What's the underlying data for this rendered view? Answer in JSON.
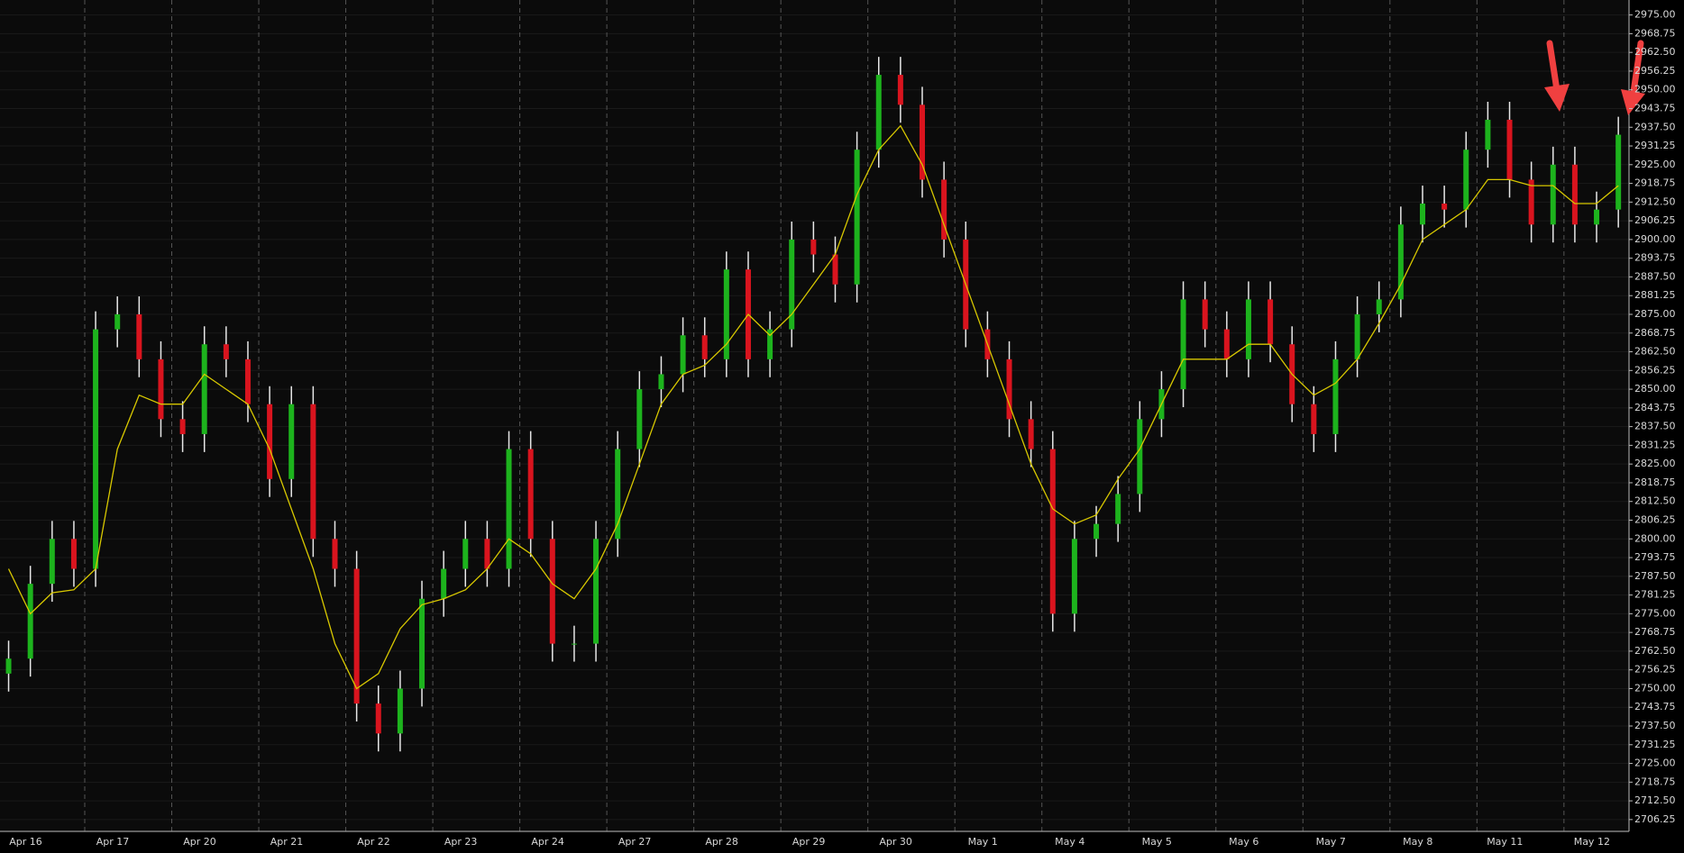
{
  "chart_data": {
    "type": "candlestick",
    "categories": [
      "Apr 16",
      null,
      null,
      null,
      "Apr 17",
      null,
      null,
      null,
      "Apr 20",
      null,
      null,
      null,
      "Apr 21",
      null,
      null,
      null,
      "Apr 22",
      null,
      null,
      null,
      "Apr 23",
      null,
      null,
      null,
      "Apr 24",
      null,
      null,
      null,
      "Apr 27",
      null,
      null,
      null,
      "Apr 28",
      null,
      null,
      null,
      "Apr 29",
      null,
      null,
      null,
      "Apr 30",
      null,
      null,
      null,
      "May 1",
      null,
      null,
      null,
      "May 4",
      null,
      null,
      null,
      "May 5",
      null,
      null,
      null,
      "May 6",
      null,
      null,
      null,
      "May 7",
      null,
      null,
      null,
      "May 8",
      null,
      null,
      null,
      "May 11",
      null,
      null,
      null,
      "May 12",
      null,
      null
    ],
    "open": [
      2755,
      2760,
      2785,
      2800,
      2790,
      2870,
      2875,
      2860,
      2840,
      2835,
      2865,
      2860,
      2845,
      2820,
      2845,
      2800,
      2790,
      2745,
      2735,
      2750,
      2780,
      2790,
      2800,
      2790,
      2830,
      2800,
      2765,
      2765,
      2800,
      2830,
      2850,
      2855,
      2868,
      2860,
      2890,
      2860,
      2870,
      2900,
      2895,
      2885,
      2930,
      2955,
      2945,
      2920,
      2900,
      2870,
      2860,
      2840,
      2830,
      2775,
      2800,
      2805,
      2815,
      2840,
      2850,
      2880,
      2870,
      2860,
      2880,
      2865,
      2845,
      2835,
      2860,
      2875,
      2880,
      2905,
      2912,
      2910,
      2930,
      2940,
      2920,
      2905,
      2925,
      2905,
      2910
    ],
    "high": [
      2766,
      2791,
      2806,
      2806,
      2876,
      2881,
      2881,
      2866,
      2846,
      2871,
      2871,
      2866,
      2851,
      2851,
      2851,
      2806,
      2796,
      2751,
      2756,
      2786,
      2796,
      2806,
      2806,
      2836,
      2836,
      2806,
      2771,
      2806,
      2836,
      2856,
      2861,
      2874,
      2874,
      2896,
      2896,
      2876,
      2906,
      2906,
      2901,
      2936,
      2961,
      2961,
      2951,
      2926,
      2906,
      2876,
      2866,
      2846,
      2836,
      2806,
      2811,
      2821,
      2846,
      2856,
      2886,
      2886,
      2876,
      2886,
      2886,
      2871,
      2851,
      2866,
      2881,
      2886,
      2911,
      2918,
      2918,
      2936,
      2946,
      2946,
      2926,
      2931,
      2931,
      2916,
      2941
    ],
    "low": [
      2749,
      2754,
      2779,
      2784,
      2784,
      2864,
      2854,
      2834,
      2829,
      2829,
      2854,
      2839,
      2814,
      2814,
      2794,
      2784,
      2739,
      2729,
      2729,
      2744,
      2774,
      2784,
      2784,
      2784,
      2794,
      2759,
      2759,
      2759,
      2794,
      2824,
      2844,
      2849,
      2854,
      2854,
      2854,
      2854,
      2864,
      2889,
      2879,
      2879,
      2924,
      2939,
      2914,
      2894,
      2864,
      2854,
      2834,
      2824,
      2769,
      2769,
      2794,
      2799,
      2809,
      2834,
      2844,
      2864,
      2854,
      2854,
      2859,
      2839,
      2829,
      2829,
      2854,
      2869,
      2874,
      2899,
      2904,
      2904,
      2924,
      2914,
      2899,
      2899,
      2899,
      2899,
      2904
    ],
    "close": [
      2760,
      2785,
      2800,
      2790,
      2870,
      2875,
      2860,
      2840,
      2835,
      2865,
      2860,
      2845,
      2820,
      2845,
      2800,
      2790,
      2745,
      2735,
      2750,
      2780,
      2790,
      2800,
      2790,
      2830,
      2800,
      2765,
      2765,
      2800,
      2830,
      2850,
      2855,
      2868,
      2860,
      2890,
      2860,
      2870,
      2900,
      2895,
      2885,
      2930,
      2955,
      2945,
      2920,
      2900,
      2870,
      2860,
      2840,
      2830,
      2775,
      2800,
      2805,
      2815,
      2840,
      2850,
      2880,
      2870,
      2860,
      2880,
      2865,
      2845,
      2835,
      2860,
      2875,
      2880,
      2905,
      2912,
      2910,
      2930,
      2940,
      2920,
      2905,
      2925,
      2905,
      2910,
      2935
    ],
    "up_color": "#1db31d",
    "down_color": "#d9141e",
    "wick_color": "#e8e8e8",
    "overlay_line": {
      "color": "#d8c800",
      "values": [
        2790,
        2775,
        2782,
        2783,
        2790,
        2830,
        2848,
        2845,
        2845,
        2855,
        2850,
        2845,
        2830,
        2810,
        2790,
        2765,
        2750,
        2755,
        2770,
        2778,
        2780,
        2783,
        2790,
        2800,
        2795,
        2785,
        2780,
        2790,
        2805,
        2825,
        2845,
        2855,
        2858,
        2865,
        2875,
        2868,
        2875,
        2885,
        2895,
        2915,
        2930,
        2938,
        2925,
        2905,
        2885,
        2865,
        2845,
        2825,
        2810,
        2805,
        2808,
        2820,
        2830,
        2845,
        2860,
        2860,
        2860,
        2865,
        2865,
        2855,
        2848,
        2852,
        2860,
        2872,
        2885,
        2900,
        2905,
        2910,
        2920,
        2920,
        2918,
        2918,
        2912,
        2912,
        2918
      ]
    },
    "ylim": [
      2702.3,
      2980.0
    ],
    "yticks": [
      2706.25,
      {
        "value": 2712.5,
        "label": "2712.50"
      },
      2718.75,
      {
        "value": 2725,
        "label": "2725.00"
      },
      2731.25,
      {
        "value": 2737.5,
        "label": "2737.50"
      },
      2743.75,
      {
        "value": 2750,
        "label": "2750.00"
      },
      2756.25,
      {
        "value": 2762.5,
        "label": "2762.50"
      },
      2768.75,
      {
        "value": 2775,
        "label": "2775.00"
      },
      2781.25,
      {
        "value": 2787.5,
        "label": "2787.50"
      },
      2793.75,
      {
        "value": 2800,
        "label": "2800.00"
      },
      2806.25,
      {
        "value": 2812.5,
        "label": "2812.50"
      },
      2818.75,
      {
        "value": 2825,
        "label": "2825.00"
      },
      2831.25,
      {
        "value": 2837.5,
        "label": "2837.50"
      },
      2843.75,
      {
        "value": 2850,
        "label": "2850.00"
      },
      2856.25,
      {
        "value": 2862.5,
        "label": "2862.50"
      },
      2868.75,
      {
        "value": 2875,
        "label": "2875.00"
      },
      2881.25,
      {
        "value": 2887.5,
        "label": "2887.50"
      },
      2893.75,
      {
        "value": 2900,
        "label": "2900.00"
      },
      2906.25,
      {
        "value": 2912.5,
        "label": "2912.50"
      },
      2918.75,
      {
        "value": 2925,
        "label": "2925.00"
      },
      2931.25,
      {
        "value": 2937.5,
        "label": "2937.50"
      },
      2943.75,
      {
        "value": 2950,
        "label": "2950.00"
      },
      2956.25,
      {
        "value": 2962.5,
        "label": "2962.50"
      },
      2968.75,
      {
        "value": 2975,
        "label": "2975.00"
      }
    ],
    "grid": true
  }
}
